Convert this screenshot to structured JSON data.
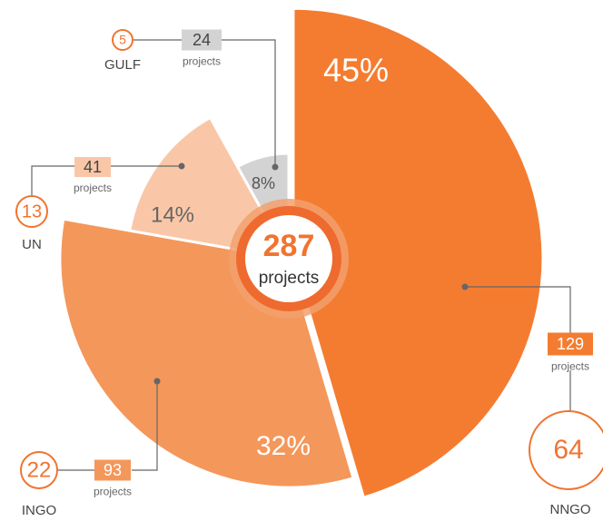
{
  "chart_data": {
    "type": "pie",
    "categories": [
      "NNGO",
      "INGO",
      "UN",
      "GULF"
    ],
    "values": [
      45,
      32,
      14,
      8
    ],
    "value_labels": [
      "45%",
      "32%",
      "14%",
      "8%"
    ],
    "colors": [
      "#f47c30",
      "#f4975a",
      "#f9c7a8",
      "#d3d3d3"
    ],
    "projects": [
      129,
      93,
      41,
      24
    ],
    "organizations": [
      64,
      22,
      13,
      5
    ],
    "projects_label": "projects",
    "total": 287,
    "total_label": "projects"
  }
}
